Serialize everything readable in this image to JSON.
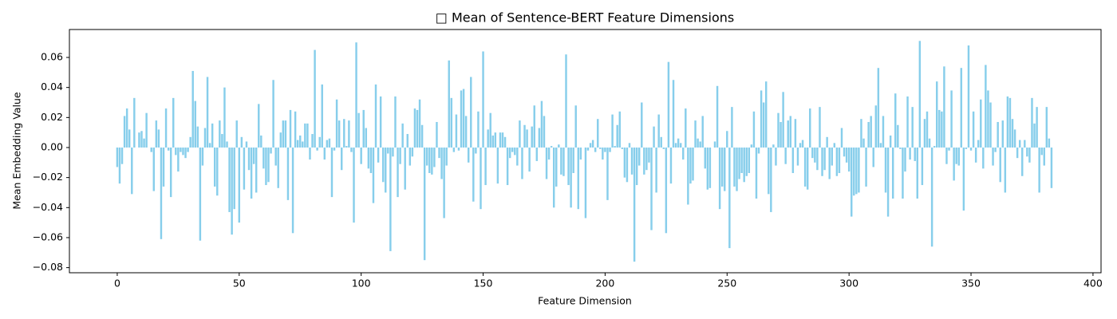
{
  "chart_data": {
    "type": "bar",
    "title": "□ Mean of Sentence-BERT Feature Dimensions",
    "x_label": "Feature Dimension",
    "y_label": "Mean Embedding Value",
    "color": "#87ceeb",
    "grid": false,
    "xlim": [
      -19.6,
      403.3
    ],
    "ylim": [
      -0.0834,
      0.0786
    ],
    "xticks": [
      0,
      50,
      100,
      150,
      200,
      250,
      300,
      350,
      400
    ],
    "yticks": [
      {
        "value": -0.08,
        "label": "−0.08"
      },
      {
        "value": -0.06,
        "label": "−0.06"
      },
      {
        "value": -0.04,
        "label": "−0.04"
      },
      {
        "value": -0.02,
        "label": "−0.02"
      },
      {
        "value": 0,
        "label": "0.00"
      },
      0.02,
      0.04,
      0.06
    ],
    "x": [
      0,
      1,
      2,
      3,
      4,
      5,
      6,
      7,
      8,
      9,
      10,
      11,
      12,
      13,
      14,
      15,
      16,
      17,
      18,
      19,
      20,
      21,
      22,
      23,
      24,
      25,
      26,
      27,
      28,
      29,
      30,
      31,
      32,
      33,
      34,
      35,
      36,
      37,
      38,
      39,
      40,
      41,
      42,
      43,
      44,
      45,
      46,
      47,
      48,
      49,
      50,
      51,
      52,
      53,
      54,
      55,
      56,
      57,
      58,
      59,
      60,
      61,
      62,
      63,
      64,
      65,
      66,
      67,
      68,
      69,
      70,
      71,
      72,
      73,
      74,
      75,
      76,
      77,
      78,
      79,
      80,
      81,
      82,
      83,
      84,
      85,
      86,
      87,
      88,
      89,
      90,
      91,
      92,
      93,
      94,
      95,
      96,
      97,
      98,
      99,
      100,
      101,
      102,
      103,
      104,
      105,
      106,
      107,
      108,
      109,
      110,
      111,
      112,
      113,
      114,
      115,
      116,
      117,
      118,
      119,
      120,
      121,
      122,
      123,
      124,
      125,
      126,
      127,
      128,
      129,
      130,
      131,
      132,
      133,
      134,
      135,
      136,
      137,
      138,
      139,
      140,
      141,
      142,
      143,
      144,
      145,
      146,
      147,
      148,
      149,
      150,
      151,
      152,
      153,
      154,
      155,
      156,
      157,
      158,
      159,
      160,
      161,
      162,
      163,
      164,
      165,
      166,
      167,
      168,
      169,
      170,
      171,
      172,
      173,
      174,
      175,
      176,
      177,
      178,
      179,
      180,
      181,
      182,
      183,
      184,
      185,
      186,
      187,
      188,
      189,
      190,
      191,
      192,
      193,
      194,
      195,
      196,
      197,
      198,
      199,
      200,
      201,
      202,
      203,
      204,
      205,
      206,
      207,
      208,
      209,
      210,
      211,
      212,
      213,
      214,
      215,
      216,
      217,
      218,
      219,
      220,
      221,
      222,
      223,
      224,
      225,
      226,
      227,
      228,
      229,
      230,
      231,
      232,
      233,
      234,
      235,
      236,
      237,
      238,
      239,
      240,
      241,
      242,
      243,
      244,
      245,
      246,
      247,
      248,
      249,
      250,
      251,
      252,
      253,
      254,
      255,
      256,
      257,
      258,
      259,
      260,
      261,
      262,
      263,
      264,
      265,
      266,
      267,
      268,
      269,
      270,
      271,
      272,
      273,
      274,
      275,
      276,
      277,
      278,
      279,
      280,
      281,
      282,
      283,
      284,
      285,
      286,
      287,
      288,
      289,
      290,
      291,
      292,
      293,
      294,
      295,
      296,
      297,
      298,
      299,
      300,
      301,
      302,
      303,
      304,
      305,
      306,
      307,
      308,
      309,
      310,
      311,
      312,
      313,
      314,
      315,
      316,
      317,
      318,
      319,
      320,
      321,
      322,
      323,
      324,
      325,
      326,
      327,
      328,
      329,
      330,
      331,
      332,
      333,
      334,
      335,
      336,
      337,
      338,
      339,
      340,
      341,
      342,
      343,
      344,
      345,
      346,
      347,
      348,
      349,
      350,
      351,
      352,
      353,
      354,
      355,
      356,
      357,
      358,
      359,
      360,
      361,
      362,
      363,
      364,
      365,
      366,
      367,
      368,
      369,
      370,
      371,
      372,
      373,
      374,
      375,
      376,
      377,
      378,
      379,
      380,
      381,
      382,
      383
    ],
    "values": [
      -0.013,
      -0.024,
      -0.011,
      0.021,
      0.026,
      0.012,
      -0.031,
      0.033,
      0.0,
      0.01,
      0.011,
      0.006,
      0.023,
      0.0,
      -0.003,
      -0.029,
      0.018,
      0.012,
      -0.061,
      -0.026,
      0.026,
      -0.002,
      -0.033,
      0.033,
      -0.005,
      -0.016,
      -0.003,
      -0.005,
      -0.007,
      -0.003,
      0.007,
      0.051,
      0.031,
      0.014,
      -0.062,
      -0.012,
      0.013,
      0.047,
      0.003,
      0.016,
      -0.026,
      -0.032,
      0.018,
      0.009,
      0.04,
      0.004,
      -0.043,
      -0.058,
      -0.041,
      0.018,
      -0.05,
      0.007,
      -0.028,
      0.004,
      -0.015,
      -0.034,
      -0.011,
      -0.03,
      0.029,
      0.008,
      -0.014,
      -0.025,
      -0.023,
      -0.004,
      0.045,
      -0.012,
      -0.027,
      0.01,
      0.018,
      0.018,
      -0.035,
      0.025,
      -0.057,
      0.024,
      0.005,
      0.008,
      0.004,
      0.016,
      0.016,
      -0.008,
      0.009,
      0.065,
      -0.002,
      0.007,
      0.042,
      -0.008,
      0.005,
      0.006,
      -0.033,
      -0.002,
      0.032,
      0.018,
      -0.015,
      0.019,
      0.001,
      0.018,
      -0.003,
      -0.05,
      0.07,
      0.023,
      -0.011,
      0.025,
      0.013,
      -0.014,
      -0.017,
      -0.037,
      0.042,
      -0.01,
      0.034,
      -0.023,
      -0.03,
      -0.004,
      -0.069,
      -0.006,
      0.034,
      -0.033,
      -0.011,
      0.016,
      -0.028,
      0.009,
      -0.012,
      -0.006,
      0.026,
      0.025,
      0.032,
      0.015,
      -0.075,
      -0.012,
      -0.017,
      -0.018,
      -0.013,
      0.017,
      -0.007,
      -0.021,
      -0.047,
      -0.012,
      0.058,
      0.033,
      -0.003,
      0.022,
      -0.002,
      0.038,
      0.039,
      0.021,
      -0.01,
      0.047,
      -0.036,
      -0.004,
      0.024,
      -0.041,
      0.064,
      -0.025,
      0.012,
      0.023,
      0.008,
      0.01,
      -0.024,
      0.01,
      0.01,
      0.007,
      -0.025,
      -0.007,
      -0.003,
      -0.005,
      -0.012,
      0.018,
      -0.021,
      0.015,
      0.012,
      -0.016,
      0.014,
      0.028,
      -0.009,
      0.013,
      0.031,
      0.021,
      -0.021,
      -0.008,
      0.001,
      -0.04,
      -0.026,
      0.002,
      -0.018,
      -0.019,
      0.062,
      -0.025,
      -0.04,
      -0.017,
      0.028,
      -0.041,
      -0.008,
      0.0,
      -0.047,
      -0.002,
      0.003,
      0.005,
      -0.003,
      0.019,
      -0.001,
      -0.008,
      -0.003,
      -0.035,
      -0.003,
      0.022,
      0.001,
      0.015,
      0.024,
      -0.001,
      -0.02,
      -0.023,
      0.003,
      -0.018,
      -0.076,
      -0.025,
      -0.012,
      0.03,
      -0.018,
      -0.015,
      -0.01,
      -0.055,
      0.014,
      -0.03,
      0.022,
      0.007,
      -0.001,
      -0.057,
      0.057,
      -0.024,
      0.045,
      0.003,
      0.006,
      0.003,
      -0.008,
      0.026,
      -0.038,
      -0.024,
      -0.022,
      0.018,
      0.006,
      0.004,
      0.021,
      -0.014,
      -0.028,
      -0.027,
      0.0,
      0.004,
      0.041,
      -0.041,
      -0.026,
      -0.029,
      0.011,
      -0.067,
      0.027,
      -0.026,
      -0.029,
      -0.021,
      -0.017,
      -0.023,
      -0.019,
      -0.017,
      0.002,
      0.024,
      -0.034,
      -0.004,
      0.038,
      0.03,
      0.044,
      -0.031,
      -0.043,
      0.002,
      -0.012,
      0.023,
      0.017,
      0.037,
      -0.011,
      0.018,
      0.021,
      -0.017,
      0.019,
      -0.012,
      0.003,
      0.005,
      -0.026,
      -0.028,
      0.026,
      -0.007,
      -0.01,
      -0.015,
      0.027,
      -0.019,
      -0.015,
      0.007,
      -0.021,
      -0.012,
      0.003,
      -0.019,
      -0.017,
      0.013,
      -0.006,
      -0.01,
      -0.016,
      -0.046,
      -0.032,
      -0.031,
      -0.03,
      0.019,
      0.006,
      -0.026,
      0.017,
      0.021,
      -0.013,
      0.028,
      0.053,
      0.003,
      0.021,
      -0.03,
      -0.046,
      0.008,
      -0.034,
      0.036,
      0.015,
      -0.001,
      -0.034,
      -0.016,
      0.034,
      -0.008,
      0.027,
      -0.009,
      -0.034,
      0.071,
      -0.025,
      0.019,
      0.024,
      0.006,
      -0.066,
      0.001,
      0.044,
      0.025,
      0.024,
      0.054,
      -0.011,
      -0.002,
      0.038,
      -0.022,
      -0.011,
      -0.012,
      0.053,
      -0.042,
      -0.001,
      0.068,
      -0.002,
      0.024,
      -0.01,
      0.005,
      0.032,
      -0.014,
      0.055,
      0.038,
      0.03,
      -0.012,
      -0.003,
      0.017,
      -0.023,
      0.018,
      -0.03,
      0.034,
      0.033,
      0.019,
      0.012,
      -0.007,
      0.005,
      -0.019,
      0.005,
      -0.006,
      -0.01,
      0.033,
      0.016,
      0.027,
      -0.03,
      -0.005,
      -0.012,
      0.027,
      0.006,
      -0.027
    ]
  }
}
